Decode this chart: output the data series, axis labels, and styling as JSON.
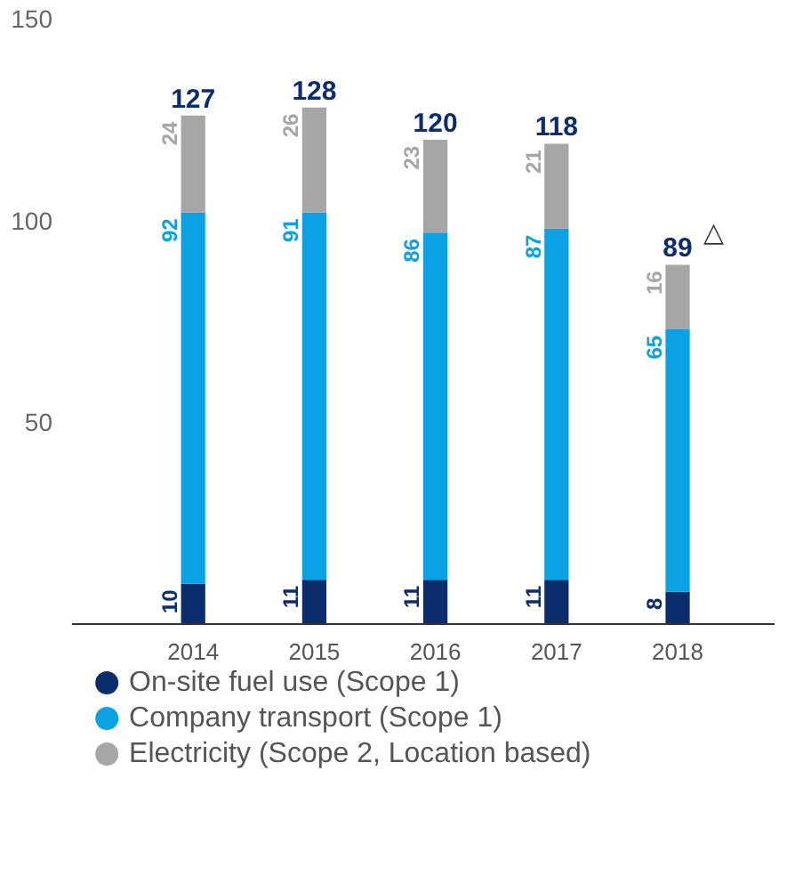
{
  "chart_data": {
    "type": "bar",
    "stacked": true,
    "categories": [
      "2014",
      "2015",
      "2016",
      "2017",
      "2018"
    ],
    "series": [
      {
        "name": "On-site fuel use (Scope 1)",
        "color": "#0b2d6b",
        "values": [
          10,
          11,
          11,
          11,
          8
        ]
      },
      {
        "name": "Company transport (Scope 1)",
        "color": "#0aa2e4",
        "values": [
          92,
          91,
          86,
          87,
          65
        ]
      },
      {
        "name": "Electricity (Scope 2, Location based)",
        "color": "#a6a6a6",
        "values": [
          24,
          26,
          23,
          21,
          16
        ]
      }
    ],
    "totals": [
      "127",
      "128",
      "120",
      "118",
      "89"
    ],
    "annotations": [
      {
        "text": "△",
        "x": "2018",
        "y": 89
      }
    ],
    "data_labels": true,
    "ylim": [
      0,
      150
    ],
    "yticks": [
      50,
      100,
      150
    ],
    "grid": false,
    "legend": "bottom"
  }
}
